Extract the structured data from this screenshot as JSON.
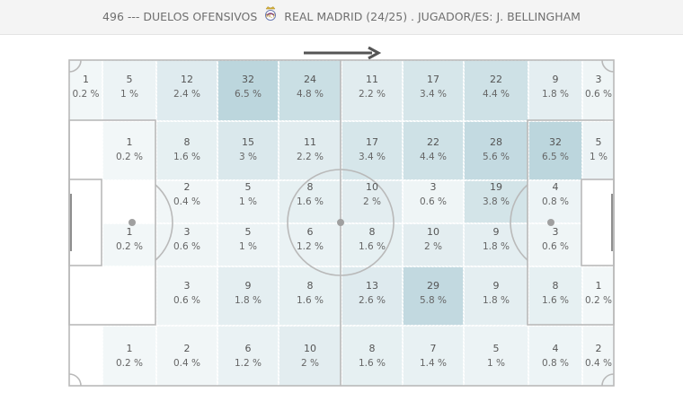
{
  "header": {
    "title_prefix": "496 --- DUELOS OFENSIVOS",
    "crest_icon": "real-madrid-crest-icon",
    "title_suffix": "REAL MADRID (24/25) . JUGADOR/ES: J. BELLINGHAM"
  },
  "attack_direction": "right",
  "colors": {
    "pitch_lines": "#b9b9b9",
    "heat_low": "#f4f8f9",
    "heat_high": "#bcd6dd",
    "text": "#555555"
  },
  "zones": [
    {
      "count": "1",
      "pct": "0.2 %",
      "intensity": 0.03
    },
    {
      "count": "5",
      "pct": "1 %",
      "intensity": 0.15
    },
    {
      "count": "12",
      "pct": "2.4 %",
      "intensity": 0.37
    },
    {
      "count": "32",
      "pct": "6.5 %",
      "intensity": 1.0
    },
    {
      "count": "24",
      "pct": "4.8 %",
      "intensity": 0.75
    },
    {
      "count": "11",
      "pct": "2.2 %",
      "intensity": 0.34
    },
    {
      "count": "17",
      "pct": "3.4 %",
      "intensity": 0.53
    },
    {
      "count": "22",
      "pct": "4.4 %",
      "intensity": 0.68
    },
    {
      "count": "9",
      "pct": "1.8 %",
      "intensity": 0.28
    },
    {
      "count": "3",
      "pct": "0.6 %",
      "intensity": 0.09
    },
    {
      "count": "1",
      "pct": "0.2 %",
      "intensity": 0.03
    },
    {
      "count": "8",
      "pct": "1.6 %",
      "intensity": 0.25
    },
    {
      "count": "15",
      "pct": "3 %",
      "intensity": 0.46
    },
    {
      "count": "11",
      "pct": "2.2 %",
      "intensity": 0.34
    },
    {
      "count": "17",
      "pct": "3.4 %",
      "intensity": 0.53
    },
    {
      "count": "22",
      "pct": "4.4 %",
      "intensity": 0.68
    },
    {
      "count": "28",
      "pct": "5.6 %",
      "intensity": 0.87
    },
    {
      "count": "32",
      "pct": "6.5 %",
      "intensity": 1.0
    },
    {
      "count": "5",
      "pct": "1 %",
      "intensity": 0.15
    },
    {
      "count": "2",
      "pct": "0.4 %",
      "intensity": 0.06
    },
    {
      "count": "5",
      "pct": "1 %",
      "intensity": 0.15
    },
    {
      "count": "8",
      "pct": "1.6 %",
      "intensity": 0.25
    },
    {
      "count": "10",
      "pct": "2 %",
      "intensity": 0.31
    },
    {
      "count": "3",
      "pct": "0.6 %",
      "intensity": 0.09
    },
    {
      "count": "19",
      "pct": "3.8 %",
      "intensity": 0.59
    },
    {
      "count": "4",
      "pct": "0.8 %",
      "intensity": 0.12
    },
    {
      "count": "1",
      "pct": "0.2 %",
      "intensity": 0.03
    },
    {
      "count": "3",
      "pct": "0.6 %",
      "intensity": 0.09
    },
    {
      "count": "5",
      "pct": "1 %",
      "intensity": 0.15
    },
    {
      "count": "6",
      "pct": "1.2 %",
      "intensity": 0.18
    },
    {
      "count": "8",
      "pct": "1.6 %",
      "intensity": 0.25
    },
    {
      "count": "10",
      "pct": "2 %",
      "intensity": 0.31
    },
    {
      "count": "9",
      "pct": "1.8 %",
      "intensity": 0.28
    },
    {
      "count": "3",
      "pct": "0.6 %",
      "intensity": 0.09
    },
    {
      "count": "3",
      "pct": "0.6 %",
      "intensity": 0.09
    },
    {
      "count": "9",
      "pct": "1.8 %",
      "intensity": 0.28
    },
    {
      "count": "8",
      "pct": "1.6 %",
      "intensity": 0.25
    },
    {
      "count": "13",
      "pct": "2.6 %",
      "intensity": 0.4
    },
    {
      "count": "29",
      "pct": "5.8 %",
      "intensity": 0.9
    },
    {
      "count": "9",
      "pct": "1.8 %",
      "intensity": 0.28
    },
    {
      "count": "8",
      "pct": "1.6 %",
      "intensity": 0.25
    },
    {
      "count": "1",
      "pct": "0.2 %",
      "intensity": 0.03
    },
    {
      "count": "1",
      "pct": "0.2 %",
      "intensity": 0.03
    },
    {
      "count": "2",
      "pct": "0.4 %",
      "intensity": 0.06
    },
    {
      "count": "6",
      "pct": "1.2 %",
      "intensity": 0.18
    },
    {
      "count": "10",
      "pct": "2 %",
      "intensity": 0.31
    },
    {
      "count": "8",
      "pct": "1.6 %",
      "intensity": 0.25
    },
    {
      "count": "7",
      "pct": "1.4 %",
      "intensity": 0.21
    },
    {
      "count": "5",
      "pct": "1 %",
      "intensity": 0.15
    },
    {
      "count": "4",
      "pct": "0.8 %",
      "intensity": 0.12
    },
    {
      "count": "2",
      "pct": "0.4 %",
      "intensity": 0.06
    }
  ]
}
